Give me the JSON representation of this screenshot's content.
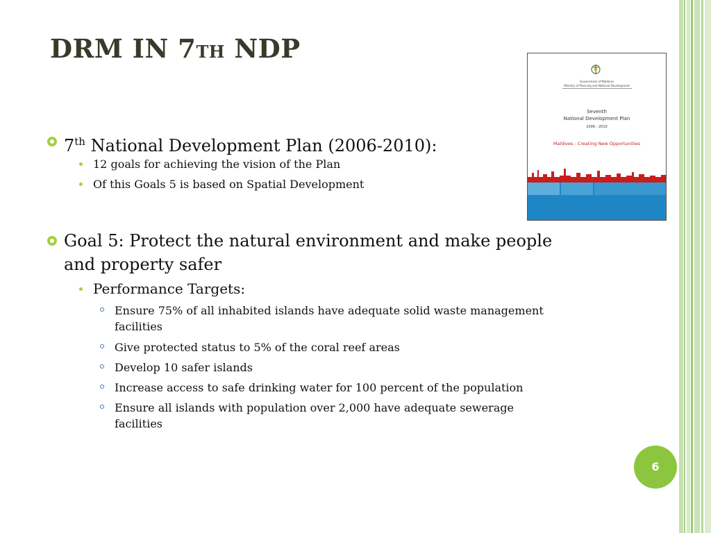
{
  "slide": {
    "title": {
      "prefix": "DRM IN 7",
      "ordinal": "TH",
      "suffix": " NDP"
    },
    "cover": {
      "government": "Government of Maldives",
      "ministry": "Ministry of Planning and National Development",
      "line1": "Seventh",
      "line2": "National Development Plan",
      "years": "2006 - 2010",
      "tagline": "Maldives - Creating New Opportunities",
      "colors": {
        "red": "#c81e1e",
        "sea": "#1f86c6",
        "band": "#5eaedc"
      }
    },
    "bullets": [
      {
        "number": "7",
        "sup": "th",
        "text": " National Development Plan (2006-2010):",
        "items": [
          "12 goals for achieving the vision of the Plan",
          "Of this Goals 5 is based on Spatial Development"
        ]
      },
      {
        "line1": "Goal 5: Protect the natural environment and make people",
        "line2": "and property safer",
        "sub_heading": "Performance Targets:",
        "targets": [
          {
            "line1": "Ensure  75% of all inhabited islands have adequate solid waste management",
            "line2": "facilities"
          },
          {
            "line1": "Give protected status to 5% of the coral reef areas"
          },
          {
            "line1": "Develop 10 safer islands"
          },
          {
            "line1": "Increase access to safe drinking water for 100 percent of the population"
          },
          {
            "line1": "Ensure all islands with population over 2,000 have adequate sewerage",
            "line2": "facilities"
          }
        ]
      }
    ],
    "page_number": "6",
    "accent_color": "#a6cf42"
  }
}
